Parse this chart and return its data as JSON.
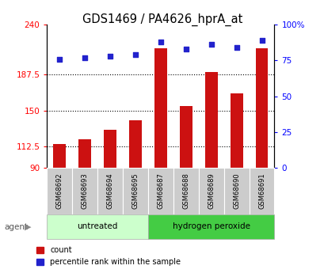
{
  "title": "GDS1469 / PA4626_hprA_at",
  "categories": [
    "GSM68692",
    "GSM68693",
    "GSM68694",
    "GSM68695",
    "GSM68687",
    "GSM68688",
    "GSM68689",
    "GSM68690",
    "GSM68691"
  ],
  "counts": [
    115,
    120,
    130,
    140,
    215,
    155,
    190,
    168,
    215
  ],
  "percentiles": [
    76,
    77,
    78,
    79,
    88,
    83,
    86,
    84,
    89
  ],
  "ylim_left": [
    90,
    240
  ],
  "ylim_right": [
    0,
    100
  ],
  "yticks_left": [
    90,
    112.5,
    150,
    187.5,
    240
  ],
  "ytick_labels_left": [
    "90",
    "112.5",
    "150",
    "187.5",
    "240"
  ],
  "yticks_right": [
    0,
    25,
    50,
    75,
    100
  ],
  "ytick_labels_right": [
    "0",
    "25",
    "50",
    "75",
    "100%"
  ],
  "hgrid_vals": [
    112.5,
    150,
    187.5
  ],
  "bar_color": "#cc1111",
  "dot_color": "#2222cc",
  "untreated_color": "#ccffcc",
  "peroxide_color": "#44cc44",
  "sample_bg_color": "#cccccc",
  "legend_count": "count",
  "legend_percentile": "percentile rank within the sample"
}
